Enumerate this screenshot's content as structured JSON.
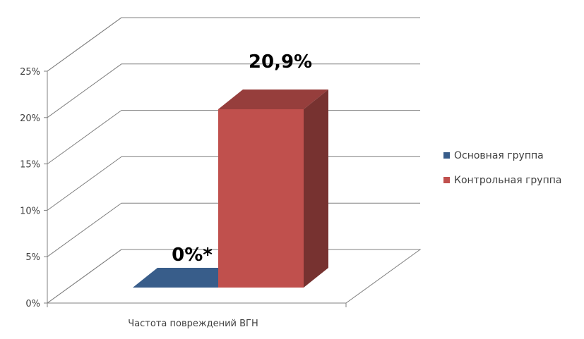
{
  "chart_data": {
    "type": "bar",
    "categories": [
      "Частота повреждений ВГН"
    ],
    "series": [
      {
        "name": "Основная группа",
        "values": [
          0
        ],
        "color": "#385d8a",
        "data_label": "0%*"
      },
      {
        "name": "Контрольная группа",
        "values": [
          20.9
        ],
        "color": "#c0504d",
        "data_label": "20,9%"
      }
    ],
    "ylim": [
      0,
      25
    ],
    "y_ticks": [
      {
        "value": 0,
        "label": "0%"
      },
      {
        "value": 5,
        "label": "5%"
      },
      {
        "value": 10,
        "label": "10%"
      },
      {
        "value": 15,
        "label": "15%"
      },
      {
        "value": 20,
        "label": "20%"
      },
      {
        "value": 25,
        "label": "25%"
      }
    ],
    "grid": true,
    "three_d": true,
    "legend_position": "right"
  }
}
